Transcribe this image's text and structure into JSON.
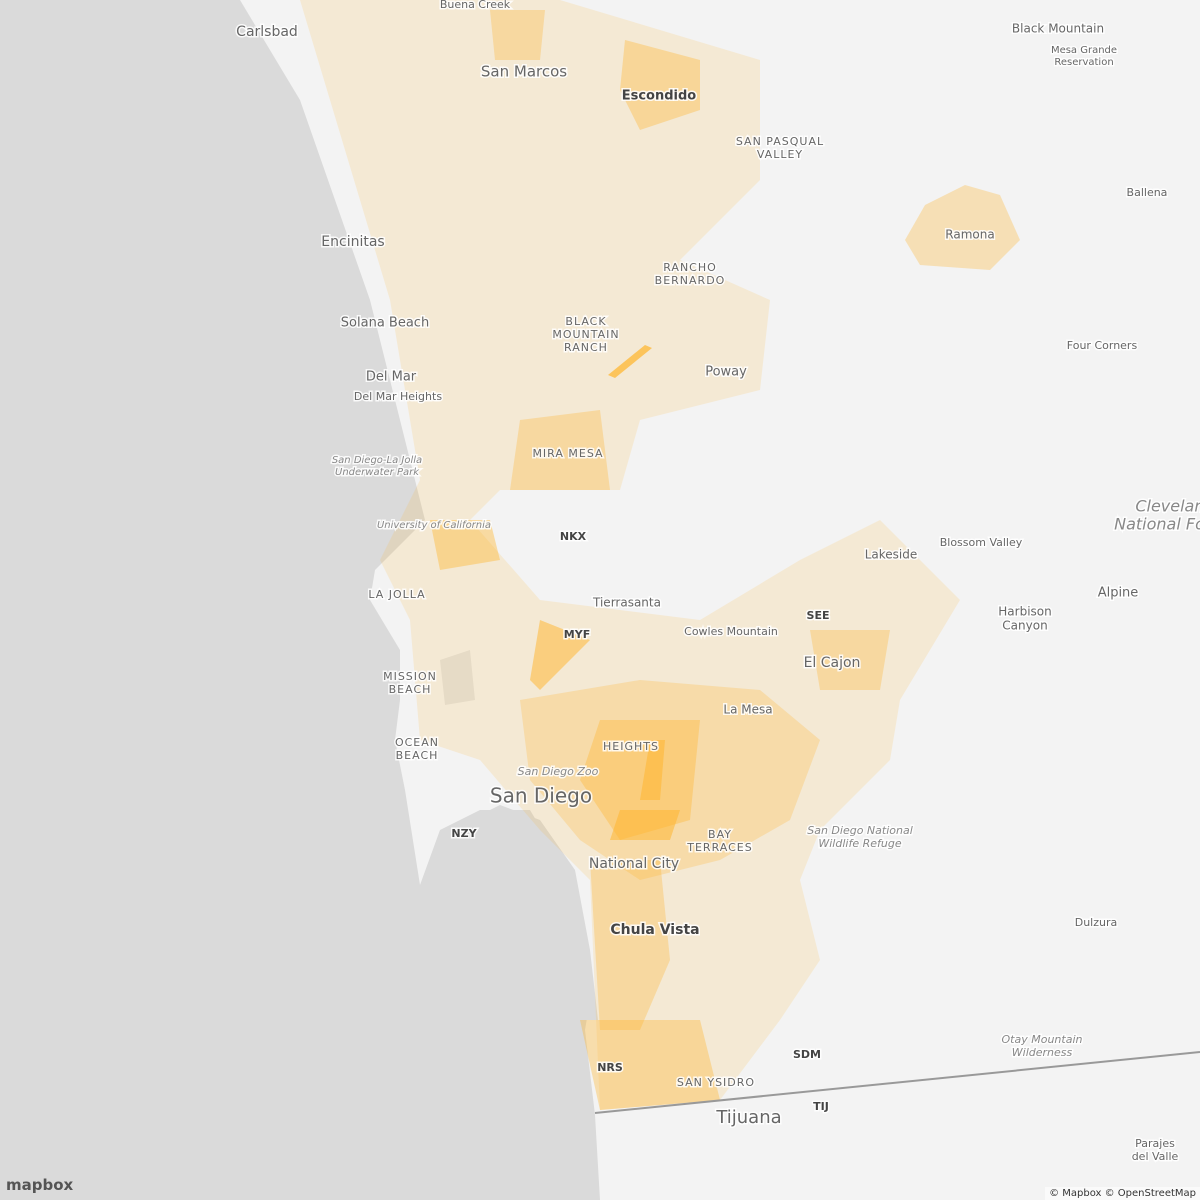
{
  "map": {
    "labels": [
      {
        "lines": [
          "Carlsbad"
        ]
      },
      {
        "lines": [
          "Buena Creek"
        ]
      },
      {
        "lines": [
          "San Marcos"
        ]
      },
      {
        "lines": [
          "Escondido"
        ]
      },
      {
        "lines": [
          "Black Mountain"
        ]
      },
      {
        "lines": [
          "Mesa Grande",
          "Reservation"
        ]
      },
      {
        "lines": [
          "SAN PASQUAL",
          "VALLEY"
        ]
      },
      {
        "lines": [
          "Ballena"
        ]
      },
      {
        "lines": [
          "Ramona"
        ]
      },
      {
        "lines": [
          "Encinitas"
        ]
      },
      {
        "lines": [
          "RANCHO",
          "BERNARDO"
        ]
      },
      {
        "lines": [
          "BLACK",
          "MOUNTAIN",
          "RANCH"
        ]
      },
      {
        "lines": [
          "Solana Beach"
        ]
      },
      {
        "lines": [
          "Four Corners"
        ]
      },
      {
        "lines": [
          "Poway"
        ]
      },
      {
        "lines": [
          "Del Mar"
        ]
      },
      {
        "lines": [
          "Del Mar Heights"
        ]
      },
      {
        "lines": [
          "San Diego-La Jolla",
          "Underwater Park"
        ]
      },
      {
        "lines": [
          "MIRA MESA"
        ]
      },
      {
        "lines": [
          "Cleveland",
          "National Forest"
        ]
      },
      {
        "lines": [
          "University of California"
        ]
      },
      {
        "lines": [
          "NKX"
        ]
      },
      {
        "lines": [
          "Lakeside"
        ]
      },
      {
        "lines": [
          "Blossom Valley"
        ]
      },
      {
        "lines": [
          "Alpine"
        ]
      },
      {
        "lines": [
          "Harbison",
          "Canyon"
        ]
      },
      {
        "lines": [
          "LA JOLLA"
        ]
      },
      {
        "lines": [
          "Tierrasanta"
        ]
      },
      {
        "lines": [
          "Cowles Mountain"
        ]
      },
      {
        "lines": [
          "SEE"
        ]
      },
      {
        "lines": [
          "MYF"
        ]
      },
      {
        "lines": [
          "El Cajon"
        ]
      },
      {
        "lines": [
          "MISSION",
          "BEACH"
        ]
      },
      {
        "lines": [
          "La Mesa"
        ]
      },
      {
        "lines": [
          "OCEAN",
          "BEACH"
        ]
      },
      {
        "lines": [
          "HEIGHTS"
        ]
      },
      {
        "lines": [
          "San Diego Zoo"
        ]
      },
      {
        "lines": [
          "San Diego"
        ]
      },
      {
        "lines": [
          "San Diego National",
          "Wildlife Refuge"
        ]
      },
      {
        "lines": [
          "NZY"
        ]
      },
      {
        "lines": [
          "BAY",
          "TERRACES"
        ]
      },
      {
        "lines": [
          "National City"
        ]
      },
      {
        "lines": [
          "Dulzura"
        ]
      },
      {
        "lines": [
          "Chula Vista"
        ]
      },
      {
        "lines": [
          "Otay Mountain",
          "Wilderness"
        ]
      },
      {
        "lines": [
          "SDM"
        ]
      },
      {
        "lines": [
          "NRS"
        ]
      },
      {
        "lines": [
          "SAN YSIDRO"
        ]
      },
      {
        "lines": [
          "TIJ"
        ]
      },
      {
        "lines": [
          "Tijuana"
        ]
      },
      {
        "lines": [
          "Parajes",
          "del Valle"
        ]
      }
    ],
    "logo": "mapbox",
    "attribution": "© Mapbox © OpenStreetMap"
  }
}
